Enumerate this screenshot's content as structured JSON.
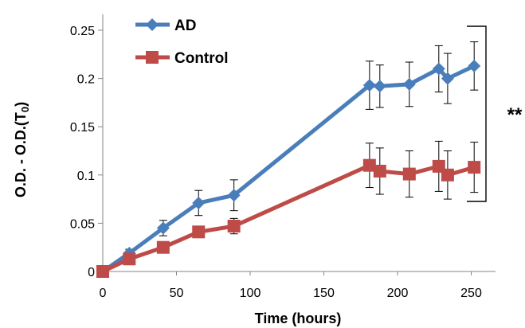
{
  "chart_data": {
    "type": "line",
    "xlabel": "Time (hours)",
    "ylabel": "O.D. - O.D.(T",
    "ylabel_sub": "0",
    "ylabel_end": ")",
    "xlim": [
      0,
      260
    ],
    "ylim": [
      0,
      0.25
    ],
    "xticks": [
      0,
      50,
      100,
      150,
      200,
      250
    ],
    "yticks": [
      0,
      0.05,
      0.1,
      0.15,
      0.2,
      0.25
    ],
    "xtick_labels": [
      "0",
      "50",
      "100",
      "150",
      "200",
      "250"
    ],
    "ytick_labels": [
      "0",
      "0.05",
      "0.1",
      "0.15",
      "0.2",
      "0.25"
    ],
    "grid": false,
    "legend_position": "top-left",
    "annotation": "**",
    "series": [
      {
        "name": "AD",
        "color": "#4a7ebb",
        "marker": "diamond",
        "x": [
          0,
          18,
          41,
          65,
          89,
          181,
          188,
          208,
          228,
          234,
          252
        ],
        "y": [
          0,
          0.019,
          0.045,
          0.071,
          0.079,
          0.193,
          0.192,
          0.194,
          0.21,
          0.2,
          0.213
        ],
        "err": [
          0,
          0.004,
          0.008,
          0.013,
          0.016,
          0.025,
          0.022,
          0.023,
          0.024,
          0.026,
          0.025
        ]
      },
      {
        "name": "Control",
        "color": "#be4b48",
        "marker": "square",
        "x": [
          0,
          18,
          41,
          65,
          89,
          181,
          188,
          208,
          228,
          234,
          252
        ],
        "y": [
          0,
          0.013,
          0.025,
          0.041,
          0.047,
          0.11,
          0.104,
          0.101,
          0.109,
          0.1,
          0.108
        ],
        "err": [
          0,
          0.003,
          0.004,
          0.005,
          0.008,
          0.023,
          0.024,
          0.024,
          0.026,
          0.025,
          0.026
        ]
      }
    ]
  }
}
